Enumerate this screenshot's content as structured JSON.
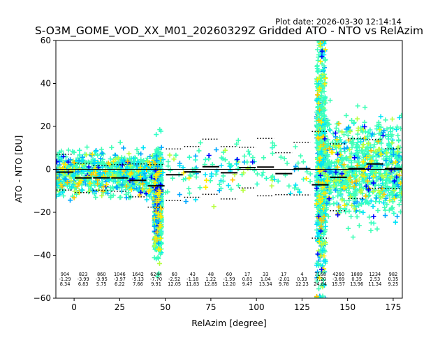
{
  "chart_data": {
    "type": "scatter",
    "title": "S-O3M_GOME_VOD_XX_M01_20260329Z Gridded ATO - NTO vs RelAzim",
    "plot_date": "Plot date: 2026-03-30 12:14:14",
    "xlabel": "RelAzim [degree]",
    "ylabel": "ATO - NTO [DU]",
    "xlim": [
      -10,
      180
    ],
    "ylim": [
      -60,
      60
    ],
    "xticks": [
      0,
      25,
      50,
      75,
      100,
      125,
      150,
      175
    ],
    "yticks": [
      -60,
      -40,
      -20,
      0,
      20,
      40,
      60
    ],
    "grid": false,
    "zero_line": 0,
    "bins": [
      {
        "center": -5,
        "count": "904",
        "mean": -1.29,
        "std": 8.34,
        "mean_label": "-1.29",
        "std_label": "8.34"
      },
      {
        "center": 5,
        "count": "823",
        "mean": -3.99,
        "std": 6.83,
        "mean_label": "-3.99",
        "std_label": "6.83"
      },
      {
        "center": 15,
        "count": "860",
        "mean": -3.95,
        "std": 5.75,
        "mean_label": "-3.95",
        "std_label": "5.75"
      },
      {
        "center": 25,
        "count": "1046",
        "mean": -3.97,
        "std": 6.22,
        "mean_label": "-3.97",
        "std_label": "6.22"
      },
      {
        "center": 35,
        "count": "1642",
        "mean": -5.13,
        "std": 7.66,
        "mean_label": "-5.13",
        "std_label": "7.66"
      },
      {
        "center": 45,
        "count": "6244",
        "mean": -7.7,
        "std": 9.91,
        "mean_label": "-7.70",
        "std_label": "9.91"
      },
      {
        "center": 55,
        "count": "60",
        "mean": -2.52,
        "std": 12.05,
        "mean_label": "-2.52",
        "std_label": "12.05"
      },
      {
        "center": 65,
        "count": "43",
        "mean": -1.18,
        "std": 11.83,
        "mean_label": "-1.18",
        "std_label": "11.83"
      },
      {
        "center": 75,
        "count": "48",
        "mean": 1.22,
        "std": 12.85,
        "mean_label": "1.22",
        "std_label": "12.85"
      },
      {
        "center": 85,
        "count": "60",
        "mean": -1.59,
        "std": 12.2,
        "mean_label": "-1.59",
        "std_label": "12.20"
      },
      {
        "center": 95,
        "count": "17",
        "mean": 0.81,
        "std": 9.47,
        "mean_label": "0.81",
        "std_label": "9.47"
      },
      {
        "center": 105,
        "count": "33",
        "mean": 1.04,
        "std": 13.34,
        "mean_label": "1.04",
        "std_label": "13.34"
      },
      {
        "center": 115,
        "count": "17",
        "mean": -2.01,
        "std": 9.78,
        "mean_label": "-2.01",
        "std_label": "9.78"
      },
      {
        "center": 125,
        "count": "4",
        "mean": 0.33,
        "std": 12.23,
        "mean_label": "0.33",
        "std_label": "12.23"
      },
      {
        "center": 135,
        "count": "7168",
        "mean": -7.2,
        "std": 24.84,
        "mean_label": "-7.20",
        "std_label": "24.84"
      },
      {
        "center": 145,
        "count": "4260",
        "mean": -3.69,
        "std": 15.57,
        "mean_label": "-3.69",
        "std_label": "15.57"
      },
      {
        "center": 155,
        "count": "1889",
        "mean": 0.35,
        "std": 13.96,
        "mean_label": "0.35",
        "std_label": "13.96"
      },
      {
        "center": 165,
        "count": "1234",
        "mean": 2.53,
        "std": 11.34,
        "mean_label": "2.53",
        "std_label": "11.34"
      },
      {
        "center": 175,
        "count": "982",
        "mean": 0.35,
        "std": 9.25,
        "mean_label": "0.35",
        "std_label": "9.25"
      }
    ],
    "scatter_clusters": [
      {
        "x": [
          -10,
          48
        ],
        "y_center": -2,
        "y_spread": 9,
        "density": "high"
      },
      {
        "x": [
          44,
          48
        ],
        "y_center": -15,
        "y_spread": 20,
        "density": "very high"
      },
      {
        "x": [
          48,
          130
        ],
        "y_center": 0,
        "y_spread": 12,
        "density": "low"
      },
      {
        "x": [
          133,
          138
        ],
        "y_center": 5,
        "y_spread": 55,
        "density": "very high"
      },
      {
        "x": [
          138,
          180
        ],
        "y_center": 0,
        "y_spread": 20,
        "density": "high"
      }
    ],
    "colors": {
      "mean_bar": "#000000",
      "std_dotted": "#000000",
      "points": [
        "#40ffb7",
        "#2fffc8",
        "#00a8ff",
        "#00e4f8",
        "#b7ff40",
        "#ffea00",
        "#ffc400",
        "#0000ff",
        "#000080",
        "#7dff7a"
      ]
    }
  }
}
